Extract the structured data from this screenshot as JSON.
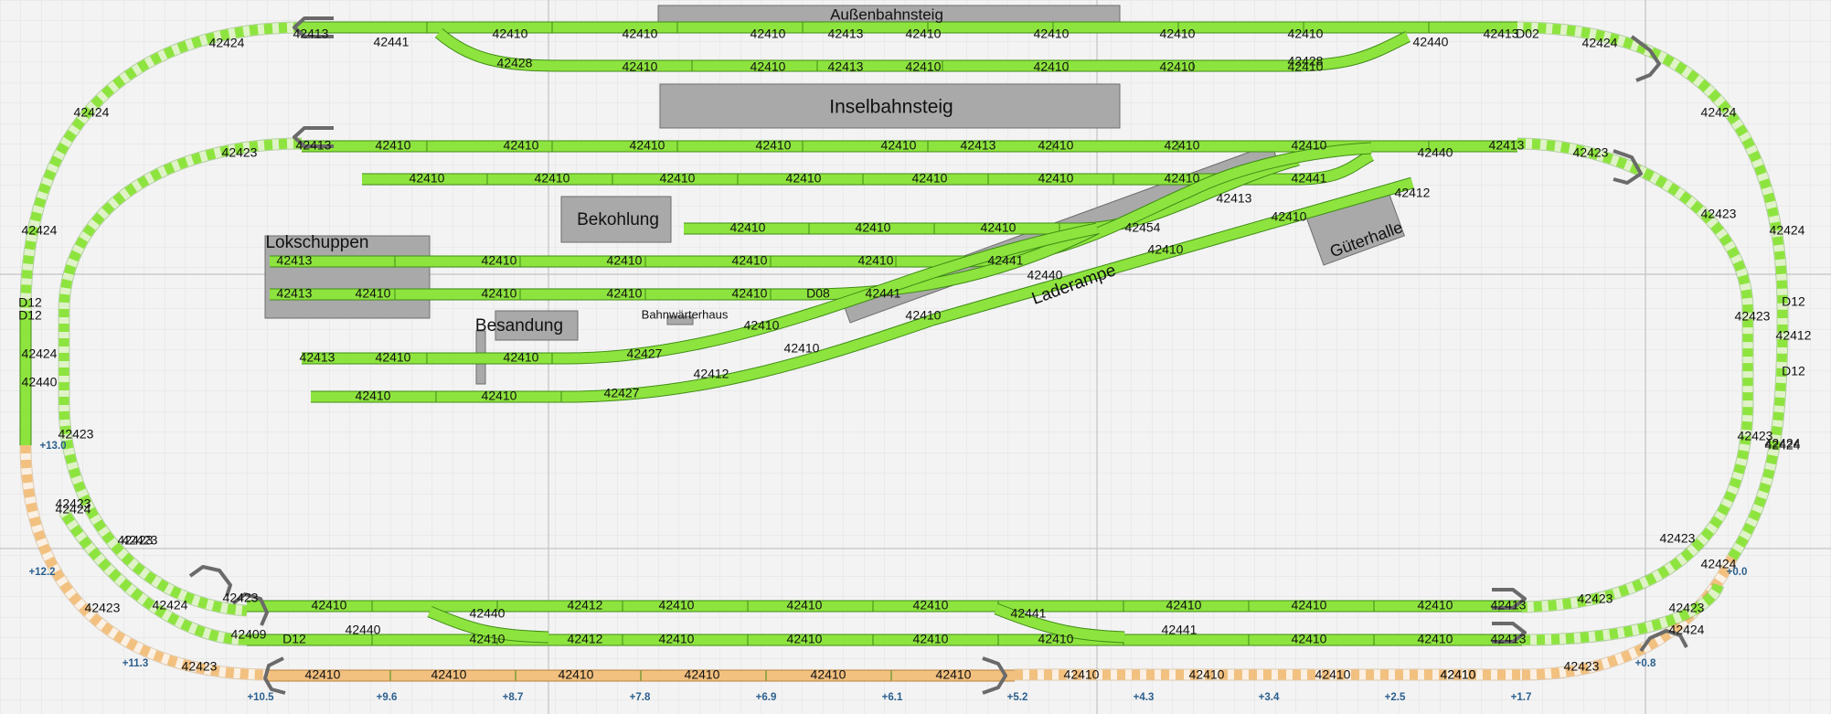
{
  "colors": {
    "track": "#8ee43e",
    "track_edge": "#3f8c16",
    "track_sleeper": "#3f8c16",
    "track_stripe_light": "#dff2c8",
    "track_hidden": "#f2c07f",
    "track_hidden_edge": "#b98238",
    "track_hidden_light": "#faf0e4",
    "building": "#a9a9a9",
    "building_edge": "#6e6e6e",
    "grid": "#d9d9d9",
    "grid_major": "#c4c4c4",
    "height_label": "#2b5f8e",
    "bumper": "#6a6a6a"
  },
  "buildings": [
    {
      "id": "aussenbahnsteig",
      "label": "Außenbahnsteig"
    },
    {
      "id": "inselbahnsteig",
      "label": "Inselbahnsteig"
    },
    {
      "id": "bekohlung",
      "label": "Bekohlung"
    },
    {
      "id": "lokschuppen",
      "label": "Lokschuppen"
    },
    {
      "id": "besandung",
      "label": "Besandung"
    },
    {
      "id": "bahnwaerterhaus",
      "label": "Bahnwärterhaus"
    },
    {
      "id": "laderampe",
      "label": "Laderampe"
    },
    {
      "id": "gueterhalle",
      "label": "Güterhalle"
    }
  ],
  "track_labels": [
    {
      "id": "t1",
      "text": "42424"
    },
    {
      "id": "t2",
      "text": "42413"
    },
    {
      "id": "t3",
      "text": "42441"
    },
    {
      "id": "t4",
      "text": "42410"
    },
    {
      "id": "t5",
      "text": "42410"
    },
    {
      "id": "t6",
      "text": "42410"
    },
    {
      "id": "t7",
      "text": "42413"
    },
    {
      "id": "t8",
      "text": "42410"
    },
    {
      "id": "t9",
      "text": "42410"
    },
    {
      "id": "t10",
      "text": "42410"
    },
    {
      "id": "t11",
      "text": "42410"
    },
    {
      "id": "t12",
      "text": "42440"
    },
    {
      "id": "t13",
      "text": "42413"
    },
    {
      "id": "t14",
      "text": "D02"
    },
    {
      "id": "t15",
      "text": "42424"
    },
    {
      "id": "t16",
      "text": "42428"
    },
    {
      "id": "t17",
      "text": "42410"
    },
    {
      "id": "t18",
      "text": "42410"
    },
    {
      "id": "t19",
      "text": "42413"
    },
    {
      "id": "t20",
      "text": "42410"
    },
    {
      "id": "t21",
      "text": "42410"
    },
    {
      "id": "t22",
      "text": "42410"
    },
    {
      "id": "t23",
      "text": "42410"
    },
    {
      "id": "t24",
      "text": "42428"
    },
    {
      "id": "t25",
      "text": "42424"
    },
    {
      "id": "t26",
      "text": "42424"
    },
    {
      "id": "t27",
      "text": "42423"
    },
    {
      "id": "t28",
      "text": "42413"
    },
    {
      "id": "t29",
      "text": "42410"
    },
    {
      "id": "t30",
      "text": "42410"
    },
    {
      "id": "t31",
      "text": "42410"
    },
    {
      "id": "t32",
      "text": "42410"
    },
    {
      "id": "t33",
      "text": "42410"
    },
    {
      "id": "t34",
      "text": "42413"
    },
    {
      "id": "t35",
      "text": "42410"
    },
    {
      "id": "t36",
      "text": "42410"
    },
    {
      "id": "t37",
      "text": "42410"
    },
    {
      "id": "t38",
      "text": "42440"
    },
    {
      "id": "t39",
      "text": "42413"
    },
    {
      "id": "t40",
      "text": "42423"
    },
    {
      "id": "t41",
      "text": "42410"
    },
    {
      "id": "t42",
      "text": "42410"
    },
    {
      "id": "t43",
      "text": "42410"
    },
    {
      "id": "t44",
      "text": "42410"
    },
    {
      "id": "t45",
      "text": "42410"
    },
    {
      "id": "t46",
      "text": "42410"
    },
    {
      "id": "t47",
      "text": "42410"
    },
    {
      "id": "t48",
      "text": "42441"
    },
    {
      "id": "t49",
      "text": "42413"
    },
    {
      "id": "t50",
      "text": "42412"
    },
    {
      "id": "t51",
      "text": "42410"
    },
    {
      "id": "t52",
      "text": "42410"
    },
    {
      "id": "t53",
      "text": "42410"
    },
    {
      "id": "t54",
      "text": "42454"
    },
    {
      "id": "t55",
      "text": "42410"
    },
    {
      "id": "t56",
      "text": "42413"
    },
    {
      "id": "t57",
      "text": "42410"
    },
    {
      "id": "t58",
      "text": "42410"
    },
    {
      "id": "t59",
      "text": "42410"
    },
    {
      "id": "t60",
      "text": "42410"
    },
    {
      "id": "t61",
      "text": "42441"
    },
    {
      "id": "t62",
      "text": "42410"
    },
    {
      "id": "t63",
      "text": "42440"
    },
    {
      "id": "t64",
      "text": "42413"
    },
    {
      "id": "t65",
      "text": "42410"
    },
    {
      "id": "t66",
      "text": "42410"
    },
    {
      "id": "t67",
      "text": "42410"
    },
    {
      "id": "t68",
      "text": "42410"
    },
    {
      "id": "t69",
      "text": "D08"
    },
    {
      "id": "t70",
      "text": "42441"
    },
    {
      "id": "t71",
      "text": "42410"
    },
    {
      "id": "t72",
      "text": "42413"
    },
    {
      "id": "t73",
      "text": "42410"
    },
    {
      "id": "t74",
      "text": "42410"
    },
    {
      "id": "t75",
      "text": "42427"
    },
    {
      "id": "t76",
      "text": "42410"
    },
    {
      "id": "t77",
      "text": "42410"
    },
    {
      "id": "t78",
      "text": "42410"
    },
    {
      "id": "t79",
      "text": "42410"
    },
    {
      "id": "t80",
      "text": "42427"
    },
    {
      "id": "t81",
      "text": "42412"
    },
    {
      "id": "t82",
      "text": "42424"
    },
    {
      "id": "t83",
      "text": "42424"
    },
    {
      "id": "t84",
      "text": "D12"
    },
    {
      "id": "t85",
      "text": "D12"
    },
    {
      "id": "t86",
      "text": "42440"
    },
    {
      "id": "t87",
      "text": "42423"
    },
    {
      "id": "t88",
      "text": "42423"
    },
    {
      "id": "t89",
      "text": "42423"
    },
    {
      "id": "t90",
      "text": "42424"
    },
    {
      "id": "t91",
      "text": "42423"
    },
    {
      "id": "t92",
      "text": "42424"
    },
    {
      "id": "t93",
      "text": "42423"
    },
    {
      "id": "t94",
      "text": "42423"
    },
    {
      "id": "t95",
      "text": "42424"
    },
    {
      "id": "t96",
      "text": "42423"
    },
    {
      "id": "t97",
      "text": "42424"
    },
    {
      "id": "t98",
      "text": "42423"
    },
    {
      "id": "t99",
      "text": "D12"
    },
    {
      "id": "t100",
      "text": "42412"
    },
    {
      "id": "t101",
      "text": "D12"
    },
    {
      "id": "t102",
      "text": "42423"
    },
    {
      "id": "t103",
      "text": "42424"
    },
    {
      "id": "t104",
      "text": "42423"
    },
    {
      "id": "t105",
      "text": "42424"
    },
    {
      "id": "t106",
      "text": "42423"
    },
    {
      "id": "t107",
      "text": "42424"
    },
    {
      "id": "t108",
      "text": "42423"
    },
    {
      "id": "t109",
      "text": "42423"
    },
    {
      "id": "t110",
      "text": "42423"
    },
    {
      "id": "t111",
      "text": "42410"
    },
    {
      "id": "t112",
      "text": "42440"
    },
    {
      "id": "t113",
      "text": "42412"
    },
    {
      "id": "t114",
      "text": "42410"
    },
    {
      "id": "t115",
      "text": "42410"
    },
    {
      "id": "t116",
      "text": "42410"
    },
    {
      "id": "t117",
      "text": "42441"
    },
    {
      "id": "t118",
      "text": "42410"
    },
    {
      "id": "t119",
      "text": "42410"
    },
    {
      "id": "t120",
      "text": "42410"
    },
    {
      "id": "t121",
      "text": "42413"
    },
    {
      "id": "t122",
      "text": "42409"
    },
    {
      "id": "t123",
      "text": "42440"
    },
    {
      "id": "t124",
      "text": "D12"
    },
    {
      "id": "t125",
      "text": "42410"
    },
    {
      "id": "t126",
      "text": "42412"
    },
    {
      "id": "t127",
      "text": "42410"
    },
    {
      "id": "t128",
      "text": "42410"
    },
    {
      "id": "t129",
      "text": "42410"
    },
    {
      "id": "t130",
      "text": "42410"
    },
    {
      "id": "t131",
      "text": "42441"
    },
    {
      "id": "t132",
      "text": "42410"
    },
    {
      "id": "t133",
      "text": "42410"
    },
    {
      "id": "t134",
      "text": "42413"
    },
    {
      "id": "t135",
      "text": "42410"
    },
    {
      "id": "t136",
      "text": "42410"
    },
    {
      "id": "t137",
      "text": "42410"
    },
    {
      "id": "t138",
      "text": "42410"
    },
    {
      "id": "t139",
      "text": "42410"
    },
    {
      "id": "t140",
      "text": "42410"
    },
    {
      "id": "t141",
      "text": "42410"
    },
    {
      "id": "t142",
      "text": "42410"
    },
    {
      "id": "t143",
      "text": "42410"
    },
    {
      "id": "t144",
      "text": "42410"
    },
    {
      "id": "t145",
      "text": "42410"
    }
  ],
  "height_labels": [
    {
      "id": "h1",
      "text": "+13.0"
    },
    {
      "id": "h2",
      "text": "+12.2"
    },
    {
      "id": "h3",
      "text": "+11.3"
    },
    {
      "id": "h4",
      "text": "+10.5"
    },
    {
      "id": "h5",
      "text": "+9.6"
    },
    {
      "id": "h6",
      "text": "+8.7"
    },
    {
      "id": "h7",
      "text": "+7.8"
    },
    {
      "id": "h8",
      "text": "+6.9"
    },
    {
      "id": "h9",
      "text": "+6.1"
    },
    {
      "id": "h10",
      "text": "+5.2"
    },
    {
      "id": "h11",
      "text": "+4.3"
    },
    {
      "id": "h12",
      "text": "+3.4"
    },
    {
      "id": "h13",
      "text": "+2.5"
    },
    {
      "id": "h14",
      "text": "+1.7"
    },
    {
      "id": "h15",
      "text": "+0.8"
    },
    {
      "id": "h16",
      "text": "+0.0"
    }
  ]
}
